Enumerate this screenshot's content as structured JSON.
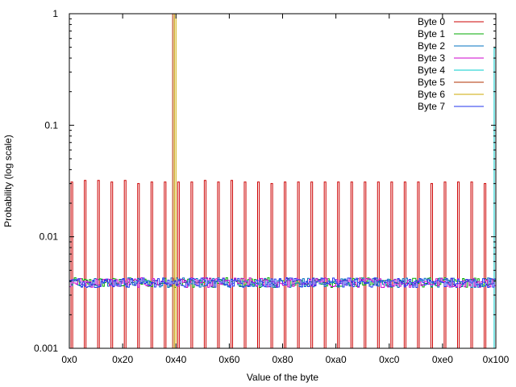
{
  "chart_data": {
    "type": "line",
    "style": "histogram-steps",
    "xlabel": "Value of the byte",
    "ylabel": "Probability (log scale)",
    "xlim": [
      0,
      256
    ],
    "ylim": [
      0.001,
      1
    ],
    "yscale": "log",
    "grid": false,
    "legend_position": "top-right",
    "x_ticks": [
      {
        "value": 0,
        "label": "0x0"
      },
      {
        "value": 32,
        "label": "0x20"
      },
      {
        "value": 64,
        "label": "0x40"
      },
      {
        "value": 96,
        "label": "0x60"
      },
      {
        "value": 128,
        "label": "0x80"
      },
      {
        "value": 160,
        "label": "0xa0"
      },
      {
        "value": 192,
        "label": "0xc0"
      },
      {
        "value": 224,
        "label": "0xe0"
      },
      {
        "value": 256,
        "label": "0x100"
      }
    ],
    "y_ticks": [
      {
        "value": 0.001,
        "label": "0.001"
      },
      {
        "value": 0.01,
        "label": "0.01"
      },
      {
        "value": 0.1,
        "label": "0.1"
      },
      {
        "value": 1,
        "label": "1"
      }
    ],
    "baseline_probability": 0.0039,
    "series": [
      {
        "name": "Byte 0",
        "color": "#cc0000",
        "base": 1e-05,
        "spikes_x": [
          1,
          9,
          17,
          25,
          33,
          41,
          49,
          57,
          65,
          73,
          81,
          89,
          97,
          105,
          113,
          121,
          129,
          137,
          145,
          153,
          161,
          169,
          177,
          185,
          193,
          201,
          209,
          217,
          225,
          233,
          241,
          249
        ],
        "spikes_y": [
          0.031,
          0.032,
          0.032,
          0.031,
          0.032,
          0.03,
          0.031,
          0.031,
          0.031,
          0.031,
          0.032,
          0.031,
          0.032,
          0.031,
          0.031,
          0.03,
          0.031,
          0.031,
          0.031,
          0.031,
          0.031,
          0.031,
          0.031,
          0.031,
          0.031,
          0.031,
          0.031,
          0.03,
          0.031,
          0.031,
          0.031,
          0.03
        ]
      },
      {
        "name": "Byte 1",
        "color": "#00aa00",
        "base": 0.0039
      },
      {
        "name": "Byte 2",
        "color": "#0070c0",
        "base": 0.0039
      },
      {
        "name": "Byte 3",
        "color": "#cc00cc",
        "base": 0.0039
      },
      {
        "name": "Byte 4",
        "color": "#00cccc",
        "base": 1e-05,
        "spikes_x": [
          255
        ],
        "spikes_y": [
          0.49
        ]
      },
      {
        "name": "Byte 5",
        "color": "#b03000",
        "base": 1e-05,
        "spikes_x": [
          62
        ],
        "spikes_y": [
          1
        ]
      },
      {
        "name": "Byte 6",
        "color": "#ccaa00",
        "base": 1e-05,
        "spikes_x": [
          63
        ],
        "spikes_y": [
          1
        ]
      },
      {
        "name": "Byte 7",
        "color": "#2233ee",
        "base": 0.0039
      }
    ]
  }
}
